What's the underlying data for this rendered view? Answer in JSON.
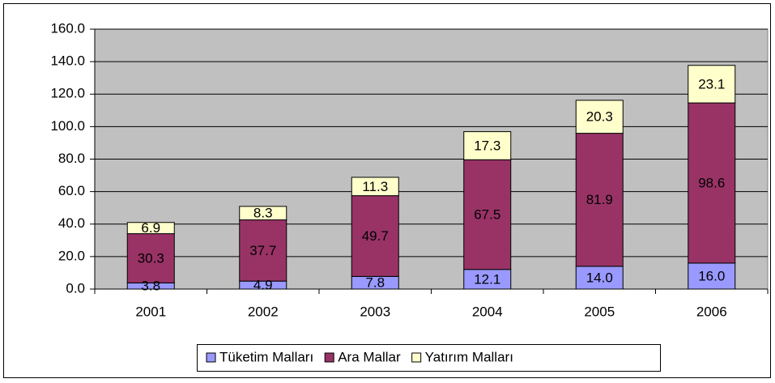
{
  "chart_data": {
    "type": "stacked_bar",
    "categories": [
      "2001",
      "2002",
      "2003",
      "2004",
      "2005",
      "2006"
    ],
    "series": [
      {
        "name": "Tüketim Malları",
        "color": "#9999ff",
        "values": [
          3.8,
          4.9,
          7.8,
          12.1,
          14.0,
          16.0
        ],
        "value_labels": [
          "3.8",
          "4.9",
          "7.8",
          "12.1",
          "14.0",
          "16.0"
        ]
      },
      {
        "name": "Ara Mallar",
        "color": "#993366",
        "values": [
          30.3,
          37.7,
          49.7,
          67.5,
          81.9,
          98.6
        ],
        "value_labels": [
          "30.3",
          "37.7",
          "49.7",
          "67.5",
          "81.9",
          "98.6"
        ]
      },
      {
        "name": "Yatırım Malları",
        "color": "#ffffcc",
        "values": [
          6.9,
          8.3,
          11.3,
          17.3,
          20.3,
          23.1
        ],
        "value_labels": [
          "6.9",
          "8.3",
          "11.3",
          "17.3",
          "20.3",
          "23.1"
        ]
      }
    ],
    "ylim": [
      0,
      160
    ],
    "yticks": [
      {
        "value": 0,
        "label": "0.0"
      },
      {
        "value": 20,
        "label": "20.0"
      },
      {
        "value": 40,
        "label": "40.0"
      },
      {
        "value": 60,
        "label": "60.0"
      },
      {
        "value": 80,
        "label": "80.0"
      },
      {
        "value": 100,
        "label": "100.0"
      },
      {
        "value": 120,
        "label": "120.0"
      },
      {
        "value": 140,
        "label": "140.0"
      },
      {
        "value": 160,
        "label": "160.0"
      }
    ],
    "grid": true,
    "legend": "bottom"
  }
}
